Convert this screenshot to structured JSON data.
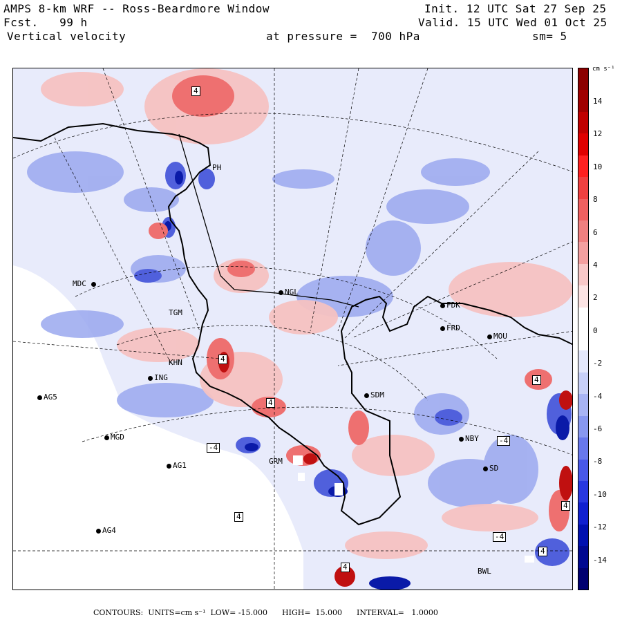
{
  "header": {
    "title": "AMPS 8-km WRF -- Ross-Beardmore Window",
    "forecast": "Fcst.   99 h",
    "field": "Vertical velocity",
    "init": "Init. 12 UTC Sat 27 Sep 25",
    "valid": "Valid. 15 UTC Wed 01 Oct 25",
    "pressure": "at pressure =  700 hPa",
    "smoothing": "sm= 5"
  },
  "colorbar": {
    "units": "cm s⁻¹",
    "ticks": [
      "14",
      "12",
      "10",
      "8",
      "6",
      "4",
      "2",
      "0",
      "-2",
      "-4",
      "-6",
      "-8",
      "-10",
      "-12",
      "-14"
    ],
    "colors": [
      "#8b0000",
      "#a00000",
      "#c00000",
      "#e00000",
      "#ff2020",
      "#f04040",
      "#f06060",
      "#f08080",
      "#f4a0a0",
      "#f8c8c8",
      "#fce4e4",
      "#ffffff",
      "#ffffff",
      "#e4e8fc",
      "#c8d0f8",
      "#a8b4f4",
      "#8898f0",
      "#6878ec",
      "#4858e8",
      "#2838e0",
      "#1020d0",
      "#0010b0",
      "#000890",
      "#000070"
    ]
  },
  "stations": [
    {
      "id": "mdc",
      "label": "MDC"
    },
    {
      "id": "ngl",
      "label": "NGL"
    },
    {
      "id": "fdk",
      "label": "FDK"
    },
    {
      "id": "frd",
      "label": "FRD"
    },
    {
      "id": "mou",
      "label": "MOU"
    },
    {
      "id": "tgm",
      "label": "TGM"
    },
    {
      "id": "khn",
      "label": "KHN"
    },
    {
      "id": "ing",
      "label": "ING"
    },
    {
      "id": "ag5",
      "label": "AG5"
    },
    {
      "id": "sdm",
      "label": "SDM"
    },
    {
      "id": "mgd",
      "label": "MGD"
    },
    {
      "id": "ag1",
      "label": "AG1"
    },
    {
      "id": "grm",
      "label": "GRM"
    },
    {
      "id": "nby",
      "label": "NBY"
    },
    {
      "id": "sd",
      "label": "SD"
    },
    {
      "id": "ag4",
      "label": "AG4"
    },
    {
      "id": "ph",
      "label": "PH"
    },
    {
      "id": "bwl",
      "label": "BWL"
    }
  ],
  "contour_labels": [
    "4",
    "4",
    "4",
    "4",
    "-4",
    "-4",
    "4",
    "-4",
    "4",
    "4",
    "4"
  ],
  "footer": {
    "contours": "CONTOURS:  UNITS=cm s⁻¹  LOW= -15.000      HIGH=  15.000      INTERVAL=   1.0000"
  }
}
